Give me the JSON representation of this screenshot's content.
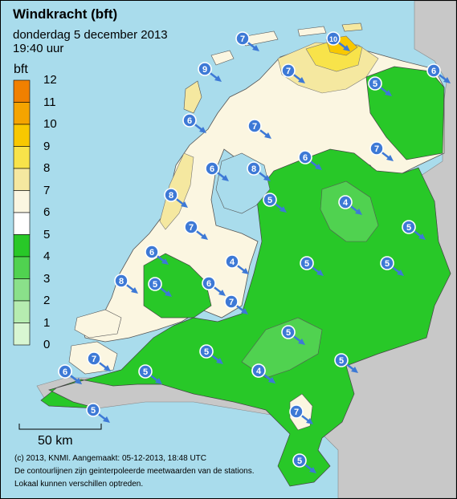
{
  "header": {
    "title": "Windkracht (bft)",
    "subtitle": "donderdag 5 december 2013",
    "time": "19:40 uur"
  },
  "legend": {
    "unit": "bft",
    "levels": [
      {
        "value": "12",
        "color": "#f08000"
      },
      {
        "value": "11",
        "color": "#f4a400"
      },
      {
        "value": "10",
        "color": "#f8c800"
      },
      {
        "value": "9",
        "color": "#f8e34a"
      },
      {
        "value": "8",
        "color": "#f5e8a0"
      },
      {
        "value": "7",
        "color": "#fbf6e1"
      },
      {
        "value": "6",
        "color": "#ffffff"
      },
      {
        "value": "5",
        "color": "#28c828"
      },
      {
        "value": "4",
        "color": "#50d250"
      },
      {
        "value": "3",
        "color": "#8ae08a"
      },
      {
        "value": "2",
        "color": "#b6ecb0"
      },
      {
        "value": "1",
        "color": "#d8f6d2"
      },
      {
        "value": "0",
        "color": "#ffffff"
      }
    ]
  },
  "scale": {
    "label": "50 km"
  },
  "footer": {
    "line1": "(c) 2013, KNMI. Aangemaakt: 05-12-2013, 18:48 UTC",
    "line2": "De contourlijnen zijn geinterpoleerde meetwaarden van de stations.",
    "line3": "Lokaal kunnen verschillen optreden."
  },
  "stations": [
    "7",
    "10",
    "9",
    "7",
    "6",
    "5",
    "6",
    "7",
    "6",
    "7",
    "6",
    "8",
    "8",
    "7",
    "5",
    "4",
    "6",
    "5",
    "5",
    "4",
    "5",
    "7",
    "8",
    "5",
    "6",
    "6",
    "5",
    "7",
    "4",
    "5",
    "6",
    "5",
    "4",
    "5",
    "7",
    "5",
    "5"
  ],
  "colors": {
    "sea": "#a9dcec",
    "land_foreign": "#c8c8c8",
    "marker": "#3d79d6"
  }
}
